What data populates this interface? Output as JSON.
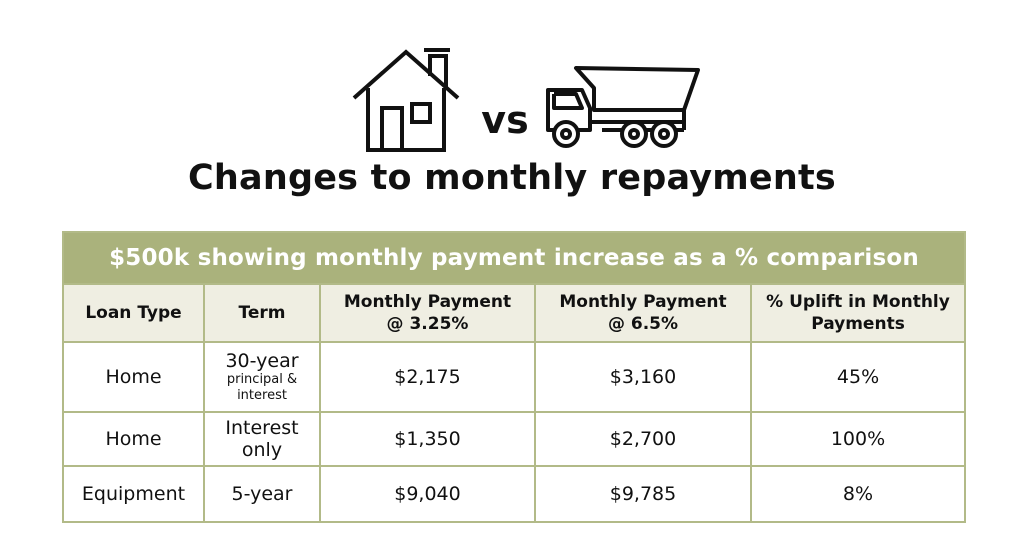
{
  "icons": {
    "left": "house-icon",
    "right": "dump-truck-icon"
  },
  "vs_text": "vs",
  "title": "Changes to monthly repayments",
  "colors": {
    "banner": "#aab27c",
    "header_bg": "#efeee2",
    "border": "#b2ba88",
    "text": "#111111"
  },
  "table": {
    "banner": "$500k showing monthly payment increase as a % comparison",
    "headers": [
      {
        "line1": "Loan Type",
        "line2": ""
      },
      {
        "line1": "Term",
        "line2": ""
      },
      {
        "line1": "Monthly Payment",
        "line2": "@ 3.25%"
      },
      {
        "line1": "Monthly Payment",
        "line2": "@ 6.5%"
      },
      {
        "line1": "% Uplift in Monthly",
        "line2": "Payments"
      }
    ],
    "rows": [
      {
        "loan_type": "Home",
        "term_main": "30-year",
        "term_sub1": "principal &",
        "term_sub2": "interest",
        "payment_325": "$2,175",
        "payment_65": "$3,160",
        "uplift": "45%"
      },
      {
        "loan_type": "Home",
        "term_line1": "Interest",
        "term_line2": "only",
        "payment_325": "$1,350",
        "payment_65": "$2,700",
        "uplift": "100%"
      },
      {
        "loan_type": "Equipment",
        "term": "5-year",
        "payment_325": "$9,040",
        "payment_65": "$9,785",
        "uplift": "8%"
      }
    ]
  }
}
